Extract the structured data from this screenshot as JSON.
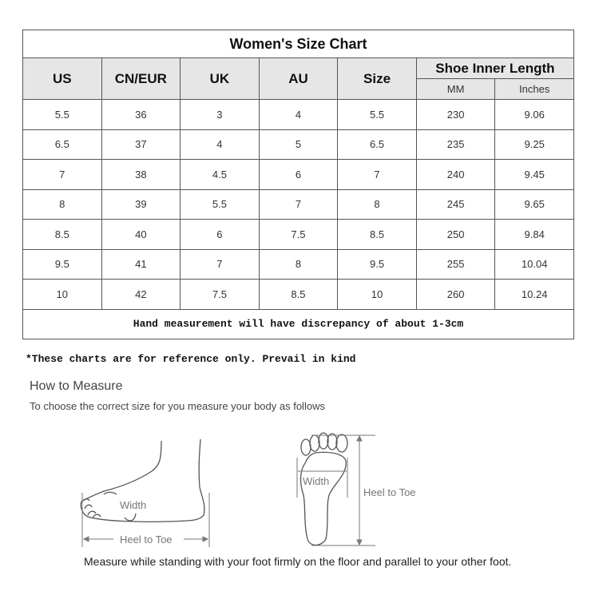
{
  "chart": {
    "title": "Women's Size Chart",
    "headers": [
      "US",
      "CN/EUR",
      "UK",
      "AU",
      "Size"
    ],
    "group_header": "Shoe Inner Length",
    "sub_headers": [
      "MM",
      "Inches"
    ],
    "rows": [
      [
        "5.5",
        "36",
        "3",
        "4",
        "5.5",
        "230",
        "9.06"
      ],
      [
        "6.5",
        "37",
        "4",
        "5",
        "6.5",
        "235",
        "9.25"
      ],
      [
        "7",
        "38",
        "4.5",
        "6",
        "7",
        "240",
        "9.45"
      ],
      [
        "8",
        "39",
        "5.5",
        "7",
        "8",
        "245",
        "9.65"
      ],
      [
        "8.5",
        "40",
        "6",
        "7.5",
        "8.5",
        "250",
        "9.84"
      ],
      [
        "9.5",
        "41",
        "7",
        "8",
        "9.5",
        "255",
        "10.04"
      ],
      [
        "10",
        "42",
        "7.5",
        "8.5",
        "10",
        "260",
        "10.24"
      ]
    ],
    "footer": "Hand measurement will have discrepancy of about 1-3cm"
  },
  "note": "*These charts are for reference only. Prevail in kind",
  "how_to": {
    "title": "How to Measure",
    "subtitle": "To choose the correct size for you measure your body as follows",
    "side_labels": {
      "width": "Width",
      "length": "Heel to Toe"
    },
    "sole_labels": {
      "width": "Width",
      "length": "Heel to Toe"
    },
    "caption": "Measure while standing with your foot firmly on the floor and parallel to your other foot."
  }
}
